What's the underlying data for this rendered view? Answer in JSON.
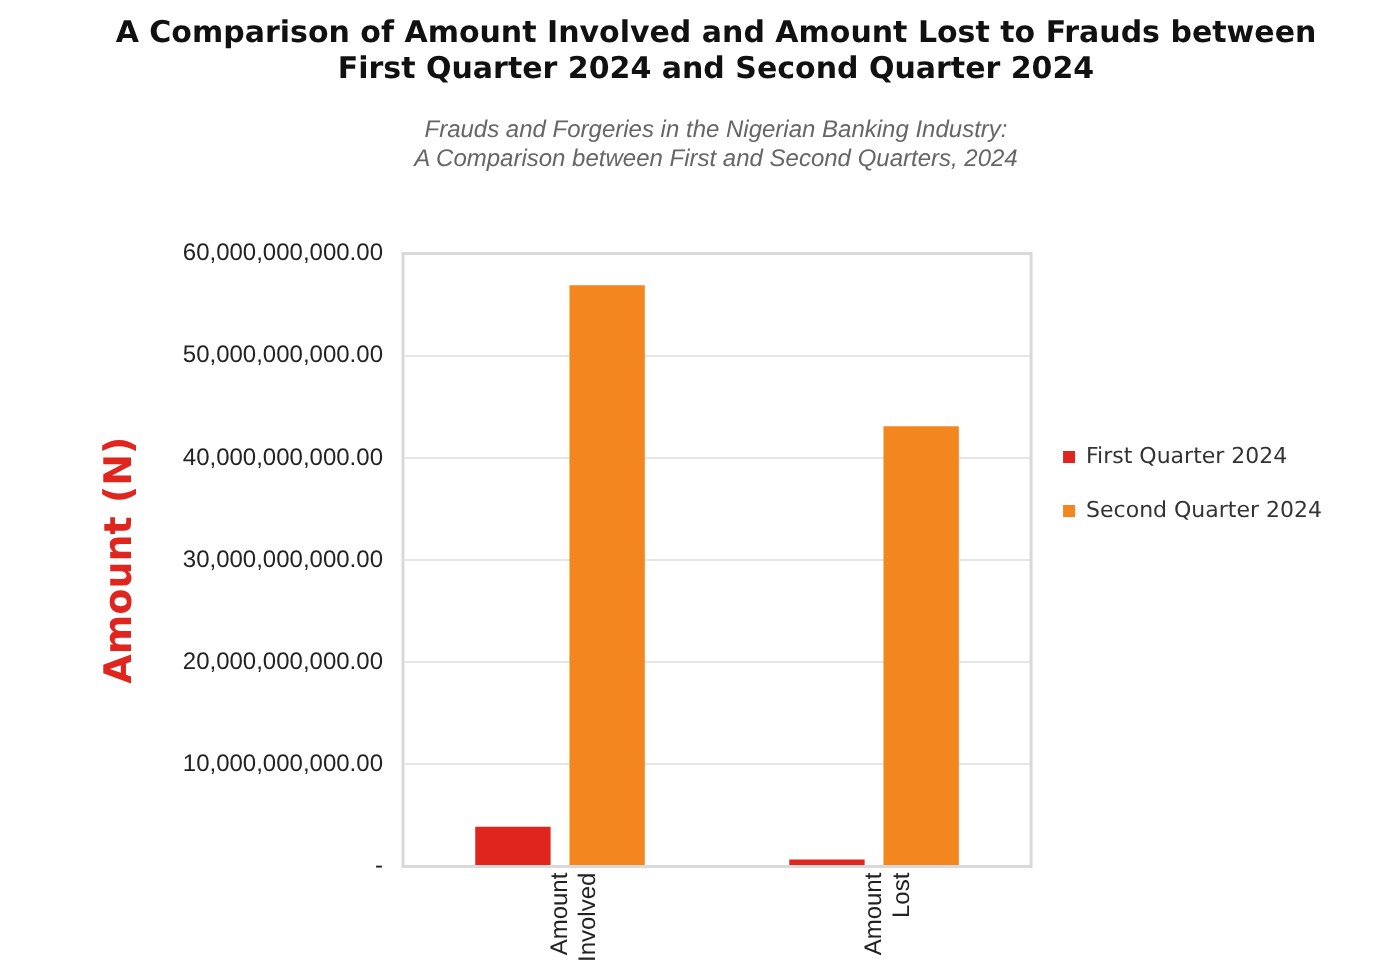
{
  "chart_data": {
    "type": "bar",
    "title": "A Comparison of Amount Involved and Amount Lost to Frauds between\nFirst Quarter 2024 and Second Quarter 2024",
    "subtitle": "Frauds and Forgeries in the Nigerian Banking Industry:\nA Comparison between First and Second Quarters, 2024",
    "ylabel": "Amount (N)",
    "categories": [
      "Amount\nInvolved",
      "Amount\nLost"
    ],
    "series": [
      {
        "name": "First Quarter 2024",
        "color": "#e0251f",
        "values": [
          3900000000,
          700000000
        ]
      },
      {
        "name": "Second Quarter 2024",
        "color": "#f48620",
        "values": [
          56900000000,
          43100000000
        ]
      }
    ],
    "ylim": [
      0,
      60000000000
    ],
    "yticks": [
      {
        "value": 0,
        "label": "-"
      },
      {
        "value": 10000000000,
        "label": "10,000,000,000.00"
      },
      {
        "value": 20000000000,
        "label": "20,000,000,000.00"
      },
      {
        "value": 30000000000,
        "label": "30,000,000,000.00"
      },
      {
        "value": 40000000000,
        "label": "40,000,000,000.00"
      },
      {
        "value": 50000000000,
        "label": "50,000,000,000.00"
      },
      {
        "value": 60000000000,
        "label": "60,000,000,000.00"
      }
    ],
    "grid": "y",
    "legend": "right"
  }
}
